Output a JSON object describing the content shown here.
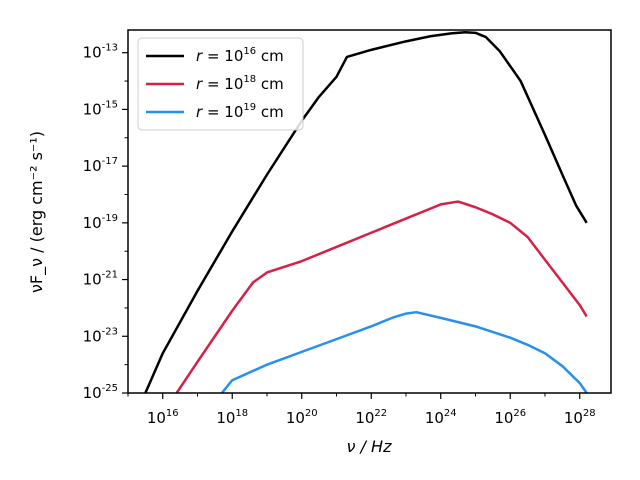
{
  "chart_data": {
    "type": "line",
    "title": "",
    "xlabel": "ν / Hz",
    "ylabel": "νF_ν / (erg cm⁻² s⁻¹)",
    "xscale": "log",
    "yscale": "log",
    "xlim_log10": [
      15.0,
      28.9
    ],
    "ylim_log10": [
      -25,
      -12.2
    ],
    "xticks_log10": [
      16,
      18,
      20,
      22,
      24,
      26,
      28
    ],
    "yticks_log10": [
      -25,
      -23,
      -21,
      -19,
      -17,
      -15,
      -13
    ],
    "grid": false,
    "legend_position": "top-left",
    "series": [
      {
        "name": "r = 10^16 cm",
        "legend_base": "r = 10",
        "legend_exp": "16",
        "legend_unit": "cm",
        "color": "#000000",
        "x_log10": [
          15.5,
          16.0,
          17.0,
          18.0,
          19.0,
          20.0,
          20.5,
          21.0,
          21.3,
          22.0,
          23.0,
          23.7,
          24.3,
          24.7,
          25.0,
          25.3,
          25.7,
          26.3,
          27.0,
          27.5,
          27.9,
          28.2
        ],
        "y_log10": [
          -25.0,
          -23.6,
          -21.4,
          -19.3,
          -17.3,
          -15.4,
          -14.55,
          -13.85,
          -13.15,
          -12.9,
          -12.6,
          -12.42,
          -12.32,
          -12.28,
          -12.3,
          -12.45,
          -12.95,
          -14.0,
          -15.9,
          -17.3,
          -18.4,
          -19.0
        ]
      },
      {
        "name": "r = 10^18 cm",
        "legend_base": "r = 10",
        "legend_exp": "18",
        "legend_unit": "cm",
        "color": "#d62045",
        "x_log10": [
          16.4,
          17.0,
          18.0,
          18.6,
          19.0,
          20.0,
          21.0,
          22.0,
          23.0,
          23.5,
          24.0,
          24.5,
          25.0,
          25.5,
          26.0,
          26.5,
          27.0,
          27.5,
          28.0,
          28.2
        ],
        "y_log10": [
          -25.0,
          -23.9,
          -22.1,
          -21.1,
          -20.75,
          -20.35,
          -19.85,
          -19.35,
          -18.85,
          -18.6,
          -18.35,
          -18.25,
          -18.45,
          -18.7,
          -19.0,
          -19.5,
          -20.3,
          -21.1,
          -21.9,
          -22.3
        ]
      },
      {
        "name": "r = 10^19 cm",
        "legend_base": "r = 10",
        "legend_exp": "19",
        "legend_unit": "cm",
        "color": "#2690f0",
        "x_log10": [
          17.7,
          18.0,
          19.0,
          20.0,
          21.0,
          22.0,
          22.6,
          23.0,
          23.3,
          24.0,
          25.0,
          26.0,
          26.5,
          27.0,
          27.5,
          28.0,
          28.2
        ],
        "y_log10": [
          -25.0,
          -24.55,
          -24.0,
          -23.55,
          -23.1,
          -22.65,
          -22.35,
          -22.2,
          -22.15,
          -22.35,
          -22.65,
          -23.05,
          -23.3,
          -23.6,
          -24.05,
          -24.65,
          -25.0
        ]
      }
    ]
  }
}
